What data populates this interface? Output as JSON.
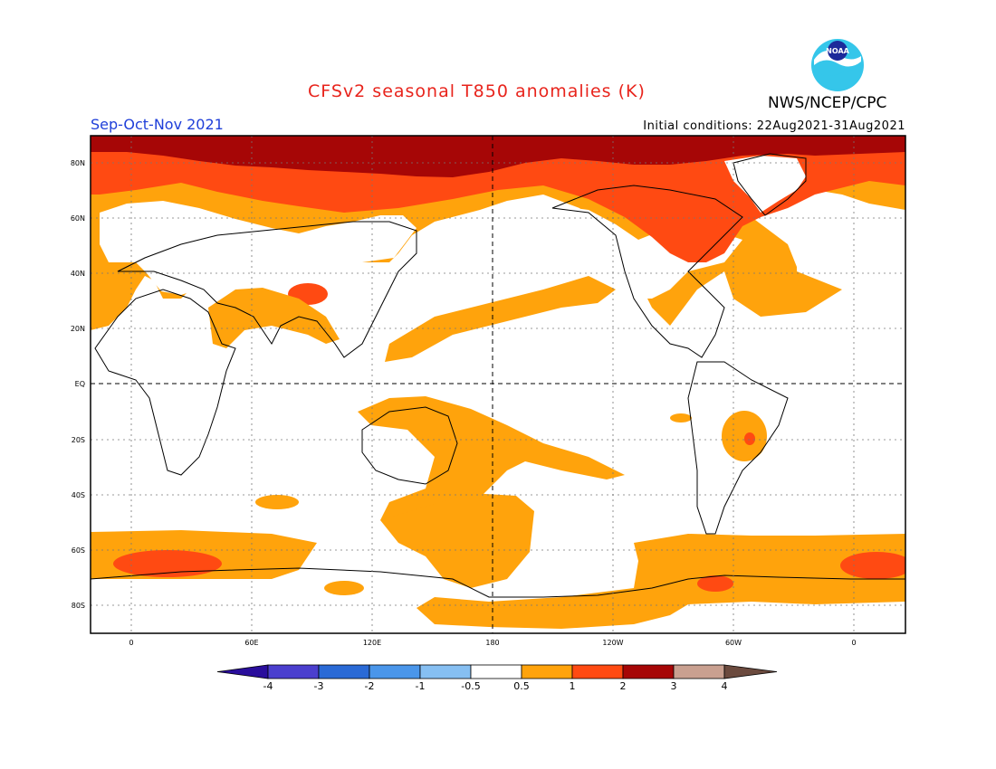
{
  "header": {
    "title": "CFSv2 seasonal T850 anomalies (K)",
    "agency": "NWS/NCEP/CPC",
    "season": "Sep-Oct-Nov 2021",
    "initial_conditions": "Initial conditions: 22Aug2021-31Aug2021",
    "logo_text": "NOAA"
  },
  "map": {
    "lat_labels": [
      "80N",
      "60N",
      "40N",
      "20N",
      "EQ",
      "20S",
      "40S",
      "60S",
      "80S"
    ],
    "lon_labels": [
      "0",
      "60E",
      "120E",
      "180",
      "120W",
      "60W",
      "0"
    ]
  },
  "colorbar": {
    "labels": [
      "-4",
      "-3",
      "-2",
      "-1",
      "-0.5",
      "0.5",
      "1",
      "2",
      "3",
      "4"
    ],
    "colors": [
      "#2a0e9c",
      "#4b3fce",
      "#2a6ad6",
      "#4a96ea",
      "#86bff2",
      "#ffffff",
      "#ffa30c",
      "#ff4a12",
      "#a60606",
      "#c9a090",
      "#6b4a3e"
    ]
  }
}
